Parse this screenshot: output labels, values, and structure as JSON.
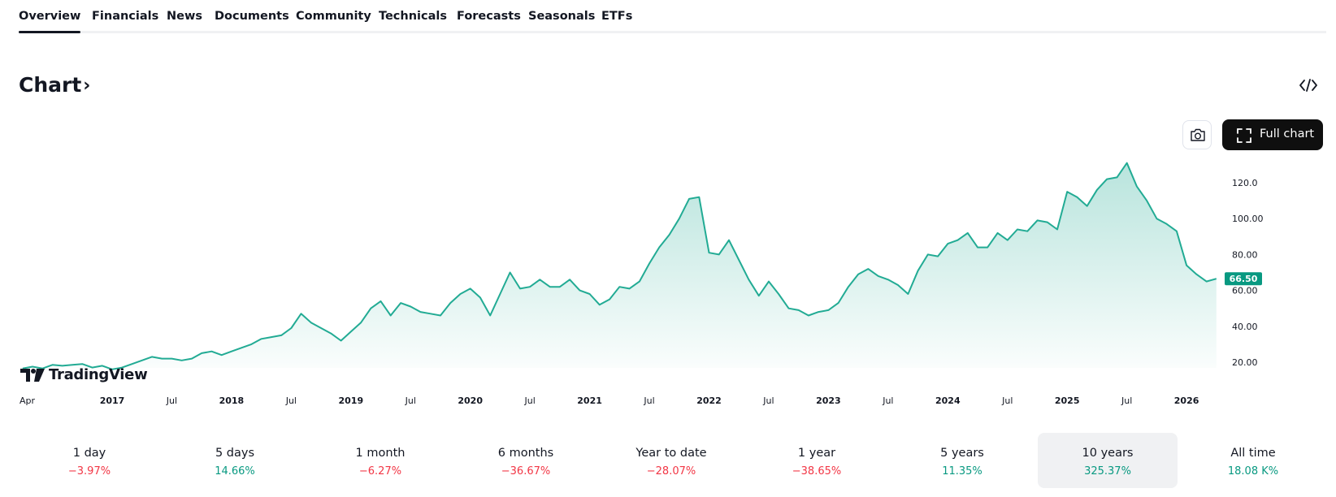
{
  "tabs": [
    {
      "label": "Overview",
      "active": true
    },
    {
      "label": "Financials"
    },
    {
      "label": "News"
    },
    {
      "label": "Documents"
    },
    {
      "label": "Community"
    },
    {
      "label": "Technicals"
    },
    {
      "label": "Forecasts"
    },
    {
      "label": "Seasonals"
    },
    {
      "label": "ETFs"
    }
  ],
  "chart_section": {
    "title": "Chart",
    "title_icon": "chevron-right-icon",
    "embed_icon": "code-embed-icon",
    "snapshot_icon": "camera-icon",
    "full_chart_label": "Full chart",
    "full_chart_icon": "fullscreen-icon",
    "watermark": "TradingView"
  },
  "chart_data": {
    "type": "area",
    "title": "",
    "xlabel": "",
    "ylabel": "",
    "ylim": [
      15,
      140
    ],
    "yticks": [
      20,
      40,
      60,
      80,
      100,
      120
    ],
    "ytick_labels": [
      "20.00",
      "40.00",
      "60.00",
      "80.00",
      "100.00",
      "120.0"
    ],
    "xticks": [
      {
        "label": "Apr",
        "t": 2016.25
      },
      {
        "label": "2017",
        "t": 2017.0
      },
      {
        "label": "Jul",
        "t": 2017.5
      },
      {
        "label": "2018",
        "t": 2018.0
      },
      {
        "label": "Jul",
        "t": 2018.5
      },
      {
        "label": "2019",
        "t": 2019.0
      },
      {
        "label": "Jul",
        "t": 2019.5
      },
      {
        "label": "2020",
        "t": 2020.0
      },
      {
        "label": "Jul",
        "t": 2020.5
      },
      {
        "label": "2021",
        "t": 2021.0
      },
      {
        "label": "Jul",
        "t": 2021.5
      },
      {
        "label": "2022",
        "t": 2022.0
      },
      {
        "label": "Jul",
        "t": 2022.5
      },
      {
        "label": "2023",
        "t": 2023.0
      },
      {
        "label": "Jul",
        "t": 2023.5
      },
      {
        "label": "2024",
        "t": 2024.0
      },
      {
        "label": "Jul",
        "t": 2024.5
      },
      {
        "label": "2025",
        "t": 2025.0
      },
      {
        "label": "Jul",
        "t": 2025.5
      },
      {
        "label": "2026",
        "t": 2026.0
      }
    ],
    "last_price": 66.5,
    "last_price_label": "66.50",
    "line_color": "#22ab94",
    "price_label_color": "#089981",
    "grid": false,
    "series": [
      {
        "x": [
          2016.25,
          2016.333,
          2016.417,
          2016.5,
          2016.583,
          2016.667,
          2016.75,
          2016.833,
          2016.917,
          2017.0,
          2017.083,
          2017.167,
          2017.25,
          2017.333,
          2017.417,
          2017.5,
          2017.583,
          2017.667,
          2017.75,
          2017.833,
          2017.917,
          2018.0,
          2018.083,
          2018.167,
          2018.25,
          2018.333,
          2018.417,
          2018.5,
          2018.583,
          2018.667,
          2018.75,
          2018.833,
          2018.917,
          2019.0,
          2019.083,
          2019.167,
          2019.25,
          2019.333,
          2019.417,
          2019.5,
          2019.583,
          2019.667,
          2019.75,
          2019.833,
          2019.917,
          2020.0,
          2020.083,
          2020.167,
          2020.25,
          2020.333,
          2020.417,
          2020.5,
          2020.583,
          2020.667,
          2020.75,
          2020.833,
          2020.917,
          2021.0,
          2021.083,
          2021.167,
          2021.25,
          2021.333,
          2021.417,
          2021.5,
          2021.583,
          2021.667,
          2021.75,
          2021.833,
          2021.917,
          2022.0,
          2022.083,
          2022.167,
          2022.25,
          2022.333,
          2022.417,
          2022.5,
          2022.583,
          2022.667,
          2022.75,
          2022.833,
          2022.917,
          2023.0,
          2023.083,
          2023.167,
          2023.25,
          2023.333,
          2023.417,
          2023.5,
          2023.583,
          2023.667,
          2023.75,
          2023.833,
          2023.917,
          2024.0,
          2024.083,
          2024.167,
          2024.25,
          2024.333,
          2024.417,
          2024.5,
          2024.583,
          2024.667,
          2024.75,
          2024.833,
          2024.917,
          2025.0,
          2025.083,
          2025.167,
          2025.25,
          2025.333,
          2025.417,
          2025.5,
          2025.583,
          2025.667,
          2025.75,
          2025.833,
          2025.917,
          2026.0,
          2026.083,
          2026.167,
          2026.25
        ],
        "y": [
          16.5,
          17.5,
          16.5,
          18.5,
          18,
          18.5,
          19,
          17,
          18,
          16,
          17,
          19,
          21,
          23,
          22,
          22,
          21,
          22,
          25,
          26,
          24,
          26,
          28,
          30,
          33,
          34,
          35,
          39,
          47,
          42,
          39,
          36,
          32,
          37,
          42,
          50,
          54,
          46,
          53,
          51,
          48,
          47,
          46,
          53,
          58,
          61,
          56,
          46,
          58,
          70,
          61,
          62,
          66,
          62,
          62,
          66,
          60,
          58,
          52,
          55,
          62,
          61,
          65,
          75,
          84,
          91,
          100,
          111,
          112,
          81,
          80,
          88,
          77,
          66,
          57,
          65,
          58,
          50,
          49,
          46,
          48,
          49,
          53,
          62,
          69,
          72,
          68,
          66,
          63,
          58,
          71,
          80,
          79,
          86,
          88,
          92,
          84,
          84,
          92,
          88,
          94,
          93,
          99,
          98,
          94,
          115,
          112,
          107,
          116,
          122,
          123,
          131,
          118,
          110,
          100,
          97,
          93,
          74,
          69,
          65,
          66.5
        ]
      }
    ]
  },
  "performance": [
    {
      "label": "1 day",
      "value": "−3.97%",
      "color": "#f23645"
    },
    {
      "label": "5 days",
      "value": "14.66%",
      "color": "#089981"
    },
    {
      "label": "1 month",
      "value": "−6.27%",
      "color": "#f23645"
    },
    {
      "label": "6 months",
      "value": "−36.67%",
      "color": "#f23645"
    },
    {
      "label": "Year to date",
      "value": "−28.07%",
      "color": "#f23645"
    },
    {
      "label": "1 year",
      "value": "−38.65%",
      "color": "#f23645"
    },
    {
      "label": "5 years",
      "value": "11.35%",
      "color": "#089981"
    },
    {
      "label": "10 years",
      "value": "325.37%",
      "color": "#089981",
      "selected": true
    },
    {
      "label": "All time",
      "value": "18.08 K%",
      "color": "#089981"
    }
  ]
}
